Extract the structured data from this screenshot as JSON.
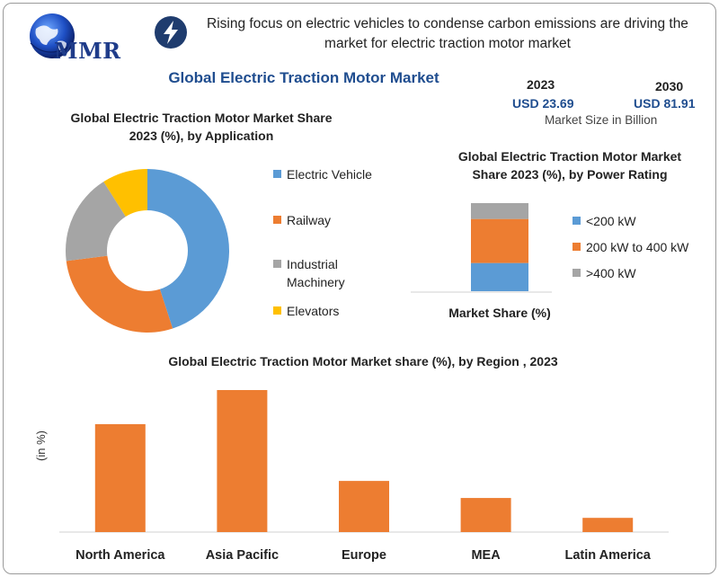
{
  "header": {
    "logo_text": "MMR",
    "headline": "Rising focus on electric vehicles to condense carbon emissions are driving the market for electric traction motor market",
    "title": "Global Electric Traction Motor Market"
  },
  "market_size": {
    "year_a": "2023",
    "value_a": "USD 23.69",
    "year_b": "2030",
    "value_b": "USD 81.91",
    "label": "Market Size in Billion"
  },
  "colors": {
    "blue": "#5b9bd5",
    "orange": "#ed7d31",
    "gray": "#a5a5a5",
    "yellow": "#ffc000",
    "brand_blue": "#1f4d8f"
  },
  "chart_data": [
    {
      "type": "pie",
      "donut": true,
      "title": "Global Electric Traction Motor Market Share 2023 (%), by Application",
      "labels": [
        "Electric Vehicle",
        "Railway",
        "Industrial Machinery",
        "Elevators"
      ],
      "values": [
        45,
        28,
        18,
        9
      ],
      "legend": "right"
    },
    {
      "type": "bar",
      "stacked": true,
      "title": "Global  Electric Traction Motor Market Share 2023 (%), by Power Rating",
      "categories": [
        "Market Share (%)"
      ],
      "series": [
        {
          "name": "<200 kW",
          "values": [
            32
          ]
        },
        {
          "name": "200 kW to 400 kW",
          "values": [
            50
          ]
        },
        {
          "name": ">400 kW",
          "values": [
            18
          ]
        }
      ],
      "xlabel": "Market Share (%)",
      "ylim": [
        0,
        100
      ],
      "legend": "right"
    },
    {
      "type": "bar",
      "title": "Global Electric Traction Motor Market share (%), by Region , 2023",
      "categories": [
        "North America",
        "Asia Pacific",
        "Europe",
        "MEA",
        "Latin America"
      ],
      "values": [
        38,
        50,
        18,
        12,
        5
      ],
      "ylabel": "(in %)",
      "ylim": [
        0,
        50
      ],
      "grid": false
    }
  ]
}
